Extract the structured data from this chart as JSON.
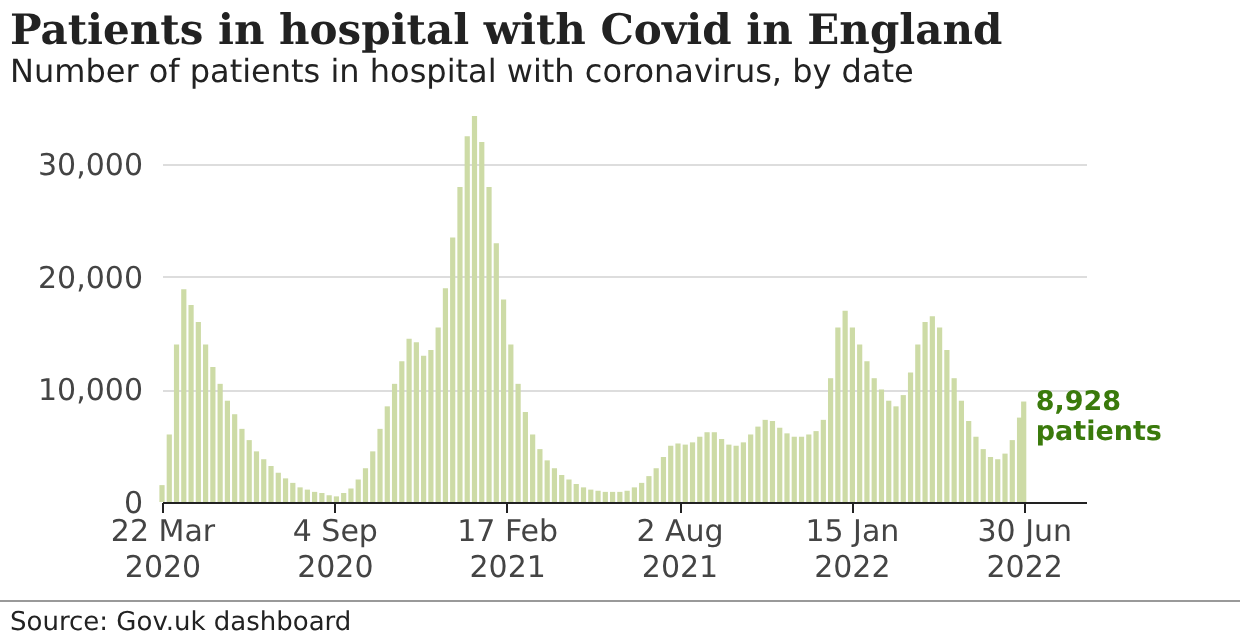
{
  "chart_data": {
    "type": "bar",
    "title": "Patients in hospital with Covid in England",
    "subtitle": "Number of patients in hospital with coronavirus, by date",
    "x": [
      "2020-03-22",
      "2020-03-29",
      "2020-04-05",
      "2020-04-12",
      "2020-04-19",
      "2020-04-26",
      "2020-05-03",
      "2020-05-10",
      "2020-05-17",
      "2020-05-24",
      "2020-05-31",
      "2020-06-07",
      "2020-06-14",
      "2020-06-21",
      "2020-06-28",
      "2020-07-05",
      "2020-07-12",
      "2020-07-19",
      "2020-07-26",
      "2020-08-02",
      "2020-08-09",
      "2020-08-16",
      "2020-08-23",
      "2020-08-30",
      "2020-09-06",
      "2020-09-13",
      "2020-09-20",
      "2020-09-27",
      "2020-10-04",
      "2020-10-11",
      "2020-10-18",
      "2020-10-25",
      "2020-11-01",
      "2020-11-08",
      "2020-11-15",
      "2020-11-22",
      "2020-11-29",
      "2020-12-06",
      "2020-12-13",
      "2020-12-20",
      "2020-12-27",
      "2021-01-03",
      "2021-01-10",
      "2021-01-17",
      "2021-01-24",
      "2021-01-31",
      "2021-02-07",
      "2021-02-14",
      "2021-02-21",
      "2021-02-28",
      "2021-03-07",
      "2021-03-14",
      "2021-03-21",
      "2021-03-28",
      "2021-04-04",
      "2021-04-11",
      "2021-04-18",
      "2021-04-25",
      "2021-05-02",
      "2021-05-09",
      "2021-05-16",
      "2021-05-23",
      "2021-05-30",
      "2021-06-06",
      "2021-06-13",
      "2021-06-20",
      "2021-06-27",
      "2021-07-04",
      "2021-07-11",
      "2021-07-18",
      "2021-07-25",
      "2021-08-01",
      "2021-08-08",
      "2021-08-15",
      "2021-08-22",
      "2021-08-29",
      "2021-09-05",
      "2021-09-12",
      "2021-09-19",
      "2021-09-26",
      "2021-10-03",
      "2021-10-10",
      "2021-10-17",
      "2021-10-24",
      "2021-10-31",
      "2021-11-07",
      "2021-11-14",
      "2021-11-21",
      "2021-11-28",
      "2021-12-05",
      "2021-12-12",
      "2021-12-19",
      "2021-12-26",
      "2022-01-02",
      "2022-01-09",
      "2022-01-16",
      "2022-01-23",
      "2022-01-30",
      "2022-02-06",
      "2022-02-13",
      "2022-02-20",
      "2022-02-27",
      "2022-03-06",
      "2022-03-13",
      "2022-03-20",
      "2022-03-27",
      "2022-04-03",
      "2022-04-10",
      "2022-04-17",
      "2022-04-24",
      "2022-05-01",
      "2022-05-08",
      "2022-05-15",
      "2022-05-22",
      "2022-05-29",
      "2022-06-05",
      "2022-06-12",
      "2022-06-19",
      "2022-06-26",
      "2022-06-30"
    ],
    "values": [
      1500,
      6000,
      14000,
      18900,
      17500,
      16000,
      14000,
      12000,
      10500,
      9000,
      7800,
      6500,
      5500,
      4500,
      3800,
      3200,
      2600,
      2100,
      1700,
      1300,
      1100,
      900,
      800,
      600,
      500,
      800,
      1200,
      2000,
      3000,
      4500,
      6500,
      8500,
      10500,
      12500,
      14500,
      14200,
      13000,
      13500,
      15500,
      19000,
      23500,
      28000,
      32500,
      34300,
      32000,
      28000,
      23000,
      18000,
      14000,
      10500,
      8000,
      6000,
      4700,
      3700,
      3000,
      2400,
      2000,
      1600,
      1300,
      1100,
      1000,
      900,
      900,
      900,
      1000,
      1300,
      1700,
      2300,
      3000,
      4000,
      5000,
      5200,
      5100,
      5300,
      5800,
      6200,
      6200,
      5600,
      5100,
      5000,
      5300,
      6000,
      6700,
      7300,
      7200,
      6600,
      6100,
      5800,
      5800,
      6000,
      6300,
      7300,
      11000,
      15500,
      17000,
      15500,
      14000,
      12500,
      11000,
      10000,
      9000,
      8500,
      9500,
      11500,
      14000,
      16000,
      16500,
      15500,
      13500,
      11000,
      9000,
      7200,
      5800,
      4700,
      4000,
      3800,
      4300,
      5500,
      7500,
      8928
    ],
    "color": "#cddba6",
    "xlim": [
      "2020-03-22",
      "2022-08-29"
    ],
    "xticks": [
      {
        "value": "2020-03-22",
        "label": "22 Mar\n2020"
      },
      {
        "value": "2020-09-04",
        "label": "4 Sep\n2020"
      },
      {
        "value": "2021-02-17",
        "label": "17 Feb\n2021"
      },
      {
        "value": "2021-08-02",
        "label": "2 Aug\n2021"
      },
      {
        "value": "2022-01-15",
        "label": "15 Jan\n2022"
      },
      {
        "value": "2022-06-30",
        "label": "30 Jun\n2022"
      }
    ],
    "ylim": [
      0,
      34300
    ],
    "yticks": [
      {
        "value": 0,
        "label": "0"
      },
      {
        "value": 10000,
        "label": "10,000"
      },
      {
        "value": 20000,
        "label": "20,000"
      },
      {
        "value": 30000,
        "label": "30,000"
      }
    ],
    "grid": "y",
    "annotations": [
      {
        "text": "8,928\npatients",
        "x": "2022-06-30",
        "y": 8928
      },
      "Source: Gov.uk dashboard"
    ]
  }
}
